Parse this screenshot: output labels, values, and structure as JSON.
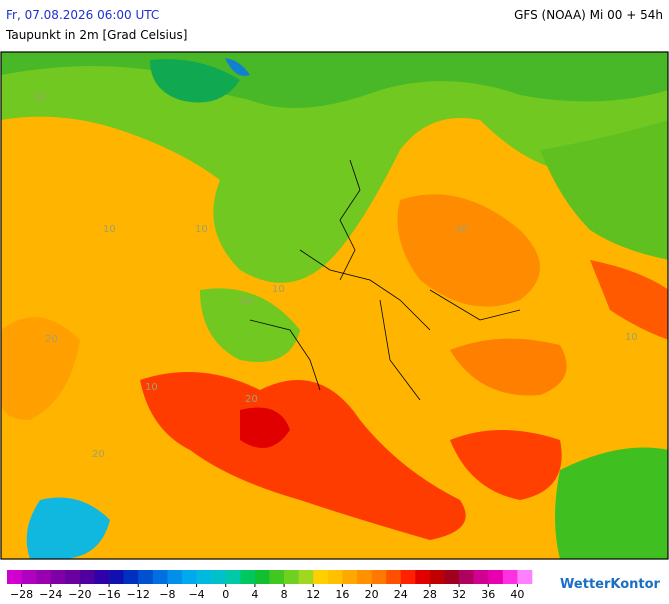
{
  "header": {
    "valid_time": "Fr, 07.08.2026 06:00 UTC",
    "parameter": "Taupunkt in 2m [Grad Celsius]",
    "model_run": "GFS (NOAA) Mi 00 + 54h"
  },
  "map": {
    "contour_labels": [
      "10",
      "10",
      "10",
      "10",
      "10",
      "20",
      "20",
      "20",
      "10",
      "10",
      "10"
    ]
  },
  "colorbar": {
    "range": [
      -30,
      42
    ],
    "colors": [
      "#d000d0",
      "#b000c0",
      "#9a00b0",
      "#8000a8",
      "#6a00a0",
      "#5000a0",
      "#3000a8",
      "#1010b0",
      "#0030c0",
      "#0050d0",
      "#0070e0",
      "#0090e8",
      "#00a8f0",
      "#00b8e0",
      "#00c0c8",
      "#00c8a8",
      "#00c860",
      "#10c030",
      "#40c820",
      "#70d020",
      "#a0d820",
      "#ffd000",
      "#ffc000",
      "#ffa800",
      "#ff9000",
      "#ff7800",
      "#ff5000",
      "#ff2000",
      "#e00000",
      "#c00000",
      "#a00020",
      "#b00060",
      "#d00090",
      "#e800b0",
      "#ff30e0",
      "#ff80ff"
    ],
    "ticks": [
      {
        "value": -28,
        "label": "−28"
      },
      {
        "value": -24,
        "label": "−24"
      },
      {
        "value": -20,
        "label": "−20"
      },
      {
        "value": -16,
        "label": "−16"
      },
      {
        "value": -12,
        "label": "−12"
      },
      {
        "value": -8,
        "label": "−8"
      },
      {
        "value": -4,
        "label": "−4"
      },
      0,
      4,
      8,
      12,
      16,
      20,
      24,
      28,
      32,
      36,
      40
    ]
  },
  "logo": "WetterKontor"
}
